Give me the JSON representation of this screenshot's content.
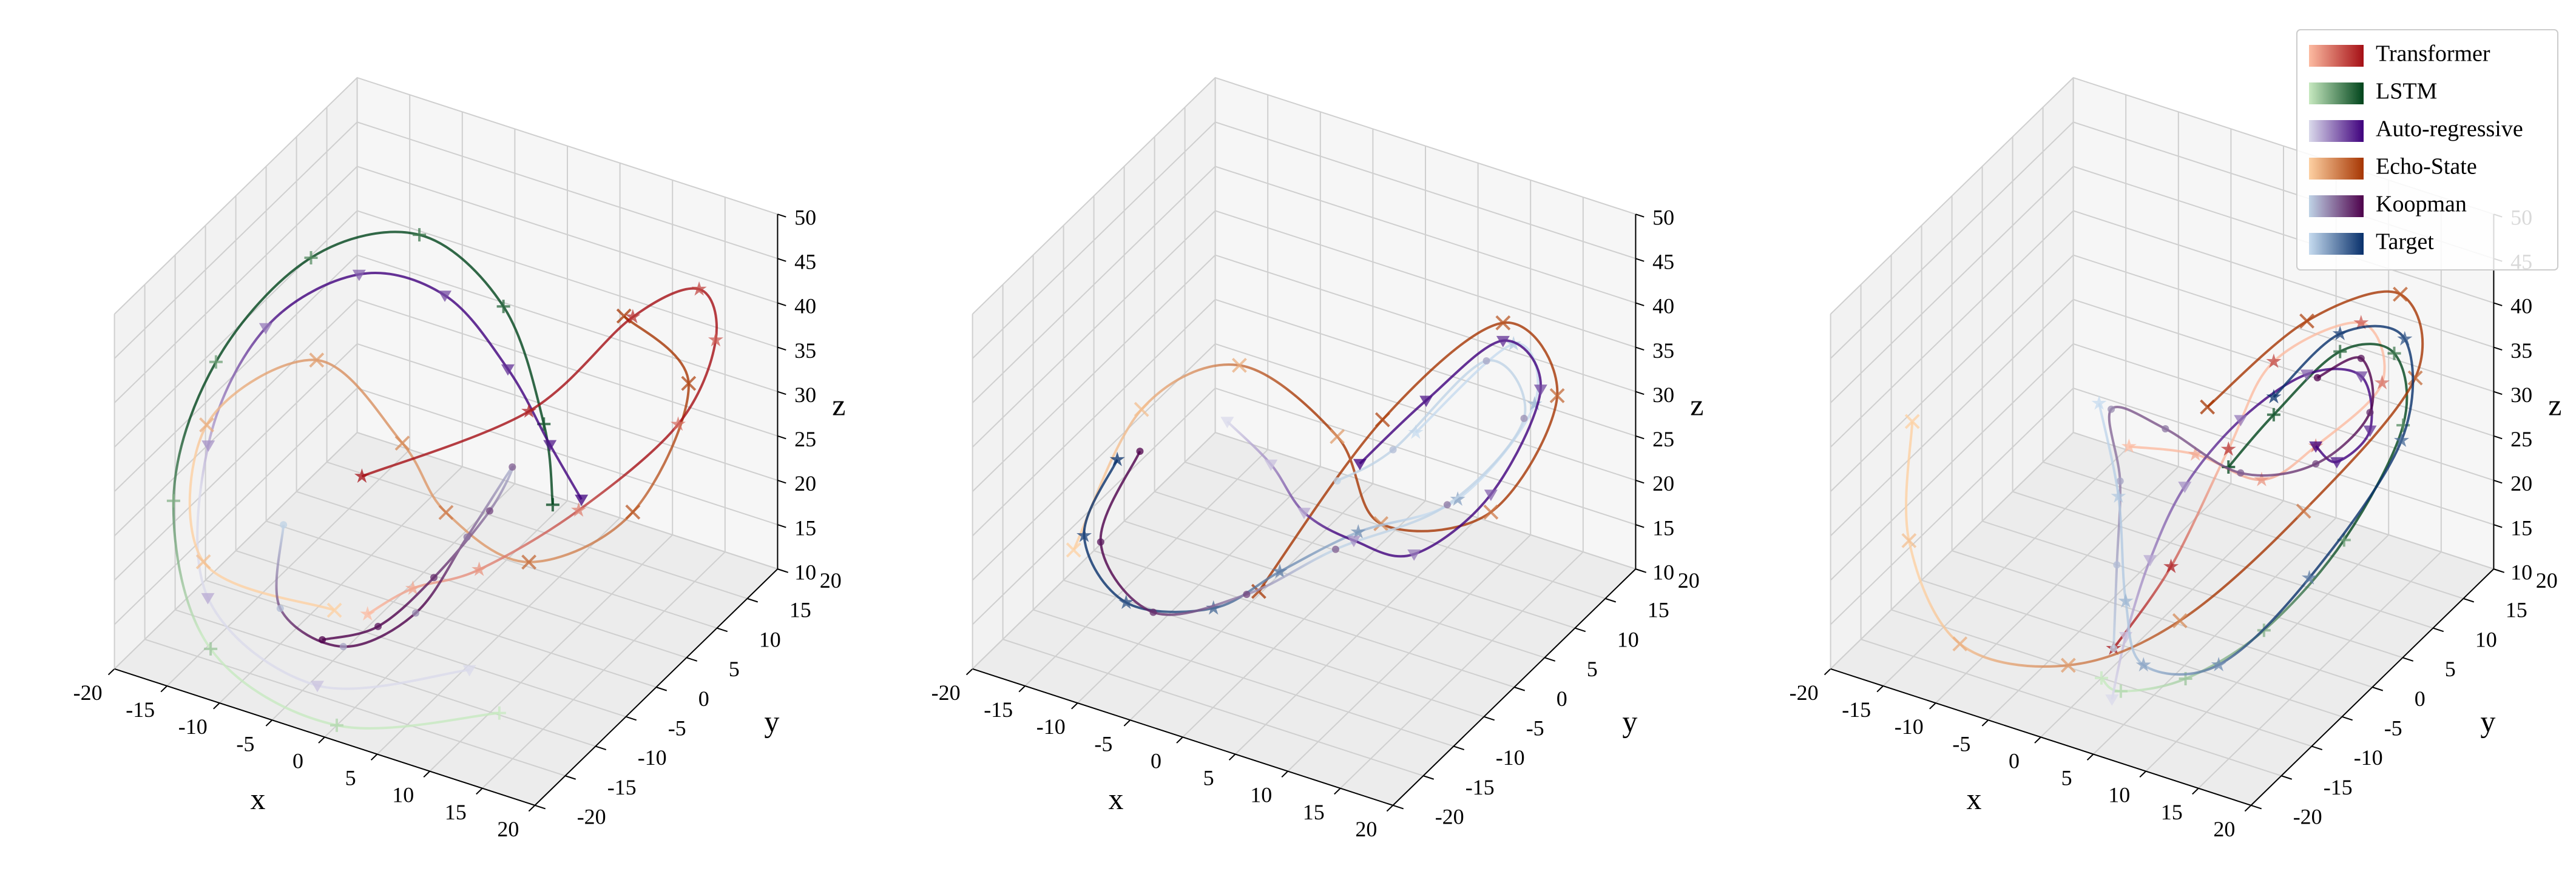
{
  "chart_data": [
    {
      "type": "scatter3d",
      "xlabel": "x",
      "ylabel": "y",
      "zlabel": "z",
      "xlim": [
        -20,
        20
      ],
      "ylim": [
        -20,
        20
      ],
      "zlim": [
        10,
        50
      ],
      "xticks": [
        -20,
        -15,
        -10,
        -5,
        0,
        5,
        10,
        15,
        20
      ],
      "yticks": [
        -20,
        -15,
        -10,
        -5,
        0,
        5,
        10,
        15,
        20
      ],
      "zticks": [
        10,
        15,
        20,
        25,
        30,
        35,
        40,
        45,
        50
      ],
      "series": [
        {
          "colors": [
            "#c7e9c0",
            "#00441b"
          ],
          "marker": "+",
          "x": [
            12,
            0,
            -12,
            -19,
            -19,
            -14,
            -6,
            2,
            7,
            9
          ],
          "y": [
            -12,
            -18,
            -18,
            -12,
            -5,
            2,
            6,
            6,
            4,
            2
          ],
          "z": [
            12,
            10,
            14,
            24,
            35,
            44,
            47,
            42,
            32,
            25
          ]
        },
        {
          "colors": [
            "#dadaeb",
            "#3f007d"
          ],
          "marker": "v",
          "x": [
            8,
            -3,
            -14,
            -18,
            -16,
            -10,
            -3,
            3,
            7,
            10
          ],
          "y": [
            -10,
            -16,
            -15,
            -8,
            -2,
            3,
            5,
            5,
            5,
            5
          ],
          "z": [
            14,
            12,
            17,
            28,
            38,
            43,
            42,
            36,
            29,
            24
          ]
        },
        {
          "colors": [
            "#fdd0a2",
            "#a63603"
          ],
          "marker": "x",
          "x": [
            -6,
            -15,
            -17,
            -10,
            -3,
            0,
            5,
            12,
            15,
            10
          ],
          "y": [
            -8,
            -14,
            -10,
            -4,
            -2,
            0,
            5,
            10,
            14,
            12
          ],
          "z": [
            14,
            20,
            32,
            38,
            30,
            22,
            15,
            20,
            33,
            40
          ]
        },
        {
          "colors": [
            "#a50f15",
            "#fcbba1"
          ],
          "marker": "*",
          "x": [
            -8,
            5,
            12,
            16,
            17,
            14,
            8,
            2,
            -2,
            -4
          ],
          "y": [
            0,
            5,
            10,
            14,
            15,
            14,
            8,
            2,
            -2,
            -6
          ],
          "z": [
            23,
            32,
            42,
            44,
            38,
            28,
            20,
            15,
            14,
            13
          ]
        },
        {
          "colors": [
            "#bfd3e6",
            "#4d004b"
          ],
          "marker": "o",
          "x": [
            -12,
            -10,
            -4,
            0,
            2,
            4,
            3,
            0,
            -3,
            -6
          ],
          "y": [
            -6,
            -10,
            -10,
            -5,
            0,
            4,
            2,
            -2,
            -6,
            -10
          ],
          "z": [
            20,
            14,
            12,
            14,
            20,
            26,
            22,
            16,
            12,
            12
          ]
        }
      ]
    },
    {
      "type": "scatter3d",
      "xlabel": "x",
      "ylabel": "y",
      "zlabel": "z",
      "xlim": [
        -20,
        20
      ],
      "ylim": [
        -20,
        20
      ],
      "zlim": [
        10,
        50
      ],
      "xticks": [
        -20,
        -15,
        -10,
        -5,
        0,
        5,
        10,
        15,
        20
      ],
      "yticks": [
        -20,
        -15,
        -10,
        -5,
        0,
        5,
        10,
        15,
        20
      ],
      "zticks": [
        10,
        15,
        20,
        25,
        30,
        35,
        40,
        45,
        50
      ],
      "series": [
        {
          "colors": [
            "#fdd0a2",
            "#a63603"
          ],
          "marker": "x",
          "x": [
            -15,
            -12,
            -5,
            2,
            5,
            12,
            16,
            12,
            4,
            -2
          ],
          "y": [
            -12,
            -6,
            -2,
            2,
            4,
            10,
            14,
            12,
            6,
            -4
          ],
          "z": [
            20,
            33,
            38,
            30,
            20,
            20,
            32,
            40,
            30,
            15
          ]
        },
        {
          "colors": [
            "#08306b",
            "#c6dbef"
          ],
          "marker": "*",
          "x": [
            -12,
            -14,
            -10,
            -4,
            0,
            4,
            10,
            15,
            13,
            6
          ],
          "y": [
            -10,
            -12,
            -12,
            -8,
            -4,
            2,
            8,
            12,
            12,
            8
          ],
          "z": [
            30,
            22,
            16,
            15,
            18,
            20,
            22,
            32,
            38,
            28
          ]
        },
        {
          "colors": [
            "#4d004b",
            "#bfd3e6"
          ],
          "marker": "o",
          "x": [
            -11,
            -13,
            -8,
            -2,
            3,
            9,
            14,
            11,
            5,
            2
          ],
          "y": [
            -8,
            -11,
            -11,
            -6,
            0,
            8,
            12,
            11,
            6,
            2
          ],
          "z": [
            30,
            21,
            15,
            16,
            19,
            21,
            30,
            36,
            27,
            25
          ]
        },
        {
          "colors": [
            "#dadaeb",
            "#3f007d"
          ],
          "marker": "v",
          "x": [
            -5,
            -2,
            0,
            3,
            7,
            12,
            15,
            12,
            7,
            3
          ],
          "y": [
            -4,
            -2,
            0,
            3,
            6,
            10,
            13,
            12,
            8,
            4
          ],
          "z": [
            33,
            28,
            22,
            18,
            16,
            22,
            33,
            38,
            32,
            26
          ]
        }
      ]
    },
    {
      "type": "scatter3d",
      "xlabel": "x",
      "ylabel": "y",
      "zlabel": "z",
      "xlim": [
        -20,
        20
      ],
      "ylim": [
        -20,
        20
      ],
      "zlim": [
        10,
        50
      ],
      "xticks": [
        -20,
        -15,
        -10,
        -5,
        0,
        5,
        10,
        15,
        20
      ],
      "yticks": [
        -20,
        -15,
        -10,
        -5,
        0,
        5,
        10,
        15,
        20
      ],
      "zticks": [
        10,
        15,
        20,
        25,
        30,
        35,
        40,
        45,
        50
      ],
      "legend": "upper right",
      "series": [
        {
          "name": "Transformer",
          "colors": [
            "#fcbba1",
            "#a50f15"
          ],
          "marker": "*",
          "x": [
            -2,
            2,
            6,
            10,
            14,
            12,
            6,
            4,
            2,
            0
          ],
          "y": [
            -2,
            2,
            6,
            8,
            12,
            12,
            8,
            4,
            -2,
            -8
          ],
          "z": [
            30,
            28,
            24,
            28,
            34,
            40,
            36,
            28,
            18,
            12
          ]
        },
        {
          "name": "LSTM",
          "colors": [
            "#c7e9c0",
            "#00441b"
          ],
          "marker": "+",
          "x": [
            0,
            3,
            8,
            12,
            15,
            16,
            14,
            10,
            6,
            4
          ],
          "y": [
            -10,
            -12,
            -10,
            -4,
            4,
            12,
            14,
            12,
            8,
            4
          ],
          "z": [
            10,
            11,
            13,
            16,
            22,
            30,
            36,
            36,
            30,
            26
          ]
        },
        {
          "name": "Auto-regressive",
          "colors": [
            "#dadaeb",
            "#3f007d"
          ],
          "marker": "v",
          "x": [
            1,
            0,
            0,
            1,
            4,
            8,
            12,
            14,
            12,
            10
          ],
          "y": [
            -10,
            -6,
            -2,
            2,
            6,
            10,
            12,
            10,
            8,
            8
          ],
          "z": [
            8,
            12,
            18,
            24,
            30,
            34,
            34,
            30,
            27,
            28
          ]
        },
        {
          "name": "Echo-State",
          "colors": [
            "#fdd0a2",
            "#a63603"
          ],
          "marker": "x",
          "x": [
            -18,
            -16,
            -10,
            -2,
            4,
            10,
            16,
            14,
            8,
            2
          ],
          "y": [
            -10,
            -14,
            -16,
            -12,
            -4,
            6,
            14,
            15,
            10,
            4
          ],
          "z": [
            32,
            22,
            14,
            12,
            14,
            22,
            34,
            42,
            40,
            32
          ]
        },
        {
          "name": "Koopman",
          "colors": [
            "#bfd3e6",
            "#4d004b"
          ],
          "marker": "o",
          "x": [
            0,
            -2,
            -4,
            -6,
            -2,
            4,
            10,
            14,
            12,
            9
          ],
          "y": [
            -8,
            -4,
            0,
            2,
            4,
            6,
            8,
            10,
            12,
            10
          ],
          "z": [
            12,
            18,
            24,
            30,
            28,
            24,
            26,
            32,
            36,
            34
          ]
        },
        {
          "name": "Target",
          "colors": [
            "#c6dbef",
            "#08306b"
          ],
          "marker": "*",
          "x": [
            -6,
            -3,
            0,
            4,
            10,
            14,
            17,
            15,
            10,
            6
          ],
          "y": [
            0,
            -2,
            -6,
            -10,
            -8,
            0,
            10,
            14,
            12,
            8
          ],
          "z": [
            32,
            24,
            16,
            13,
            14,
            20,
            30,
            38,
            38,
            32
          ]
        }
      ]
    }
  ]
}
